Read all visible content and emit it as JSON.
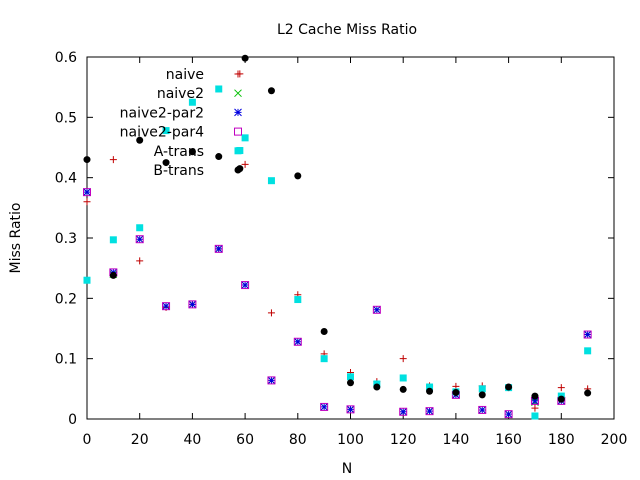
{
  "chart_data": {
    "type": "scatter",
    "title": "L2 Cache Miss Ratio",
    "xlabel": "N",
    "ylabel": "Miss Ratio",
    "xlim": [
      0,
      200
    ],
    "ylim": [
      0,
      0.6
    ],
    "xticks": [
      "0",
      "20",
      "40",
      "60",
      "80",
      "100",
      "120",
      "140",
      "160",
      "180",
      "200"
    ],
    "xtick_values": [
      0,
      20,
      40,
      60,
      80,
      100,
      120,
      140,
      160,
      180,
      200
    ],
    "yticks": [
      "0",
      "0.1",
      "0.2",
      "0.3",
      "0.4",
      "0.5",
      "0.6"
    ],
    "ytick_values": [
      0,
      0.1,
      0.2,
      0.3,
      0.4,
      0.5,
      0.6
    ],
    "grid": false,
    "legend_position": "top-left",
    "series": [
      {
        "name": "naive",
        "marker": "plus",
        "color": "#c00000",
        "points": [
          [
            0,
            0.36
          ],
          [
            10,
            0.43
          ],
          [
            20,
            0.262
          ],
          [
            30,
            0.185
          ],
          [
            40,
            0.19
          ],
          [
            50,
            0.282
          ],
          [
            58,
            0.572
          ],
          [
            60,
            0.422
          ],
          [
            70,
            0.176
          ],
          [
            80,
            0.206
          ],
          [
            90,
            0.108
          ],
          [
            100,
            0.077
          ],
          [
            110,
            0.062
          ],
          [
            120,
            0.1
          ],
          [
            130,
            0.055
          ],
          [
            140,
            0.054
          ],
          [
            150,
            0.055
          ],
          [
            160,
            0.052
          ],
          [
            170,
            0.018
          ],
          [
            180,
            0.052
          ],
          [
            190,
            0.05
          ]
        ]
      },
      {
        "name": "naive2",
        "marker": "x",
        "color": "#00c000",
        "points": [
          [
            0,
            0.376
          ],
          [
            10,
            0.24
          ],
          [
            20,
            0.298
          ],
          [
            30,
            0.187
          ],
          [
            40,
            0.19
          ],
          [
            50,
            0.282
          ],
          [
            60,
            0.222
          ],
          [
            70,
            0.064
          ],
          [
            80,
            0.128
          ],
          [
            90,
            0.02
          ],
          [
            100,
            0.016
          ],
          [
            110,
            0.181
          ],
          [
            120,
            0.012
          ],
          [
            130,
            0.013
          ],
          [
            140,
            0.04
          ],
          [
            150,
            0.015
          ],
          [
            160,
            0.008
          ],
          [
            170,
            0.028
          ],
          [
            180,
            0.03
          ],
          [
            190,
            0.14
          ]
        ]
      },
      {
        "name": "naive2-par2",
        "marker": "star",
        "color": "#0000e0",
        "points": [
          [
            0,
            0.376
          ],
          [
            10,
            0.243
          ],
          [
            20,
            0.298
          ],
          [
            30,
            0.187
          ],
          [
            40,
            0.19
          ],
          [
            50,
            0.282
          ],
          [
            60,
            0.222
          ],
          [
            70,
            0.064
          ],
          [
            80,
            0.128
          ],
          [
            90,
            0.02
          ],
          [
            100,
            0.016
          ],
          [
            110,
            0.181
          ],
          [
            120,
            0.012
          ],
          [
            130,
            0.013
          ],
          [
            140,
            0.04
          ],
          [
            150,
            0.015
          ],
          [
            160,
            0.008
          ],
          [
            170,
            0.03
          ],
          [
            180,
            0.03
          ],
          [
            190,
            0.14
          ]
        ]
      },
      {
        "name": "naive2-par4",
        "marker": "square-open",
        "color": "#c000c0",
        "points": [
          [
            0,
            0.376
          ],
          [
            10,
            0.243
          ],
          [
            20,
            0.298
          ],
          [
            30,
            0.187
          ],
          [
            40,
            0.19
          ],
          [
            50,
            0.282
          ],
          [
            60,
            0.222
          ],
          [
            70,
            0.064
          ],
          [
            80,
            0.128
          ],
          [
            90,
            0.02
          ],
          [
            100,
            0.016
          ],
          [
            110,
            0.181
          ],
          [
            120,
            0.012
          ],
          [
            130,
            0.013
          ],
          [
            140,
            0.04
          ],
          [
            150,
            0.015
          ],
          [
            160,
            0.008
          ],
          [
            170,
            0.03
          ],
          [
            180,
            0.03
          ],
          [
            190,
            0.14
          ]
        ]
      },
      {
        "name": "A-trans",
        "marker": "square-filled",
        "color": "#00e0e0",
        "points": [
          [
            0,
            0.23
          ],
          [
            10,
            0.297
          ],
          [
            20,
            0.317
          ],
          [
            30,
            0.478
          ],
          [
            40,
            0.525
          ],
          [
            50,
            0.547
          ],
          [
            58,
            0.445
          ],
          [
            60,
            0.466
          ],
          [
            70,
            0.395
          ],
          [
            80,
            0.198
          ],
          [
            90,
            0.1
          ],
          [
            100,
            0.07
          ],
          [
            110,
            0.058
          ],
          [
            120,
            0.068
          ],
          [
            130,
            0.053
          ],
          [
            140,
            0.045
          ],
          [
            150,
            0.05
          ],
          [
            160,
            0.052
          ],
          [
            170,
            0.005
          ],
          [
            180,
            0.038
          ],
          [
            190,
            0.113
          ]
        ]
      },
      {
        "name": "B-trans",
        "marker": "circle-filled",
        "color": "#000000",
        "points": [
          [
            0,
            0.43
          ],
          [
            10,
            0.238
          ],
          [
            20,
            0.462
          ],
          [
            30,
            0.425
          ],
          [
            40,
            0.443
          ],
          [
            50,
            0.435
          ],
          [
            58,
            0.415
          ],
          [
            60,
            0.598
          ],
          [
            70,
            0.544
          ],
          [
            80,
            0.403
          ],
          [
            90,
            0.145
          ],
          [
            100,
            0.06
          ],
          [
            110,
            0.053
          ],
          [
            120,
            0.049
          ],
          [
            130,
            0.046
          ],
          [
            140,
            0.044
          ],
          [
            150,
            0.04
          ],
          [
            160,
            0.053
          ],
          [
            170,
            0.038
          ],
          [
            180,
            0.033
          ],
          [
            190,
            0.043
          ]
        ]
      }
    ]
  }
}
